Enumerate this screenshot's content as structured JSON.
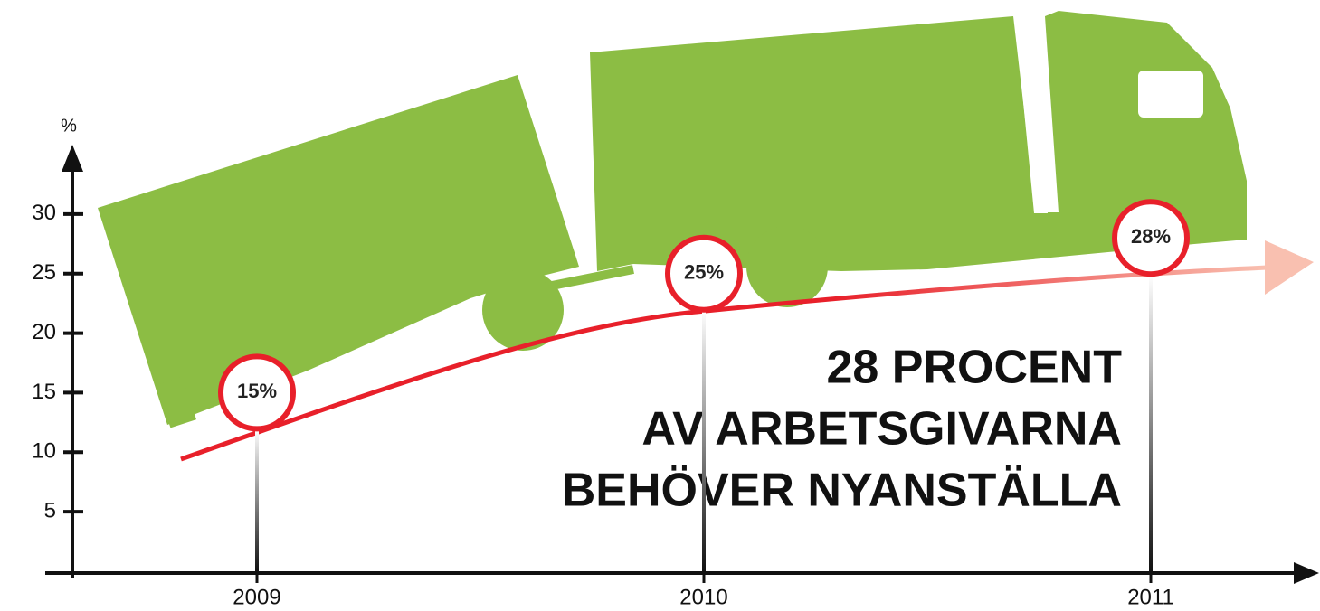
{
  "chart_data": {
    "type": "line",
    "y_unit": "%",
    "categories": [
      "2009",
      "2010",
      "2011"
    ],
    "values": [
      15,
      25,
      28
    ],
    "value_labels": [
      "15%",
      "25%",
      "28%"
    ],
    "color": "#e8202a",
    "ylim": [
      0,
      35
    ],
    "yticks": [
      5,
      10,
      15,
      20,
      25,
      30
    ],
    "annotation": [
      "28 PROCENT",
      "AV ARBETSGIVARNA",
      "BEHÖVER NYANSTÄLLA"
    ]
  }
}
